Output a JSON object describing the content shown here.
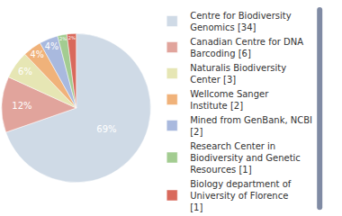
{
  "chart_data": {
    "type": "pie",
    "categories": [
      "Centre for Biodiversity Genomics [34]",
      "Canadian Centre for DNA Barcoding [6]",
      "Naturalis Biodiversity Center [3]",
      "Wellcome Sanger Institute [2]",
      "Mined from GenBank, NCBI [2]",
      "Research Center in Biodiversity and Genetic Resources [1]",
      "Biology department of University of Florence [1]"
    ],
    "values": [
      69,
      12,
      6,
      4,
      4,
      2,
      2
    ],
    "value_labels": [
      "69%",
      "12%",
      "6%",
      "4%",
      "4%",
      "2%",
      "2%"
    ],
    "colors": [
      "#cfdae6",
      "#e1a49c",
      "#e6e6b4",
      "#f0b27a",
      "#a9b9de",
      "#a3cc91",
      "#d9695c"
    ],
    "data_labels": true,
    "legend": "right"
  }
}
